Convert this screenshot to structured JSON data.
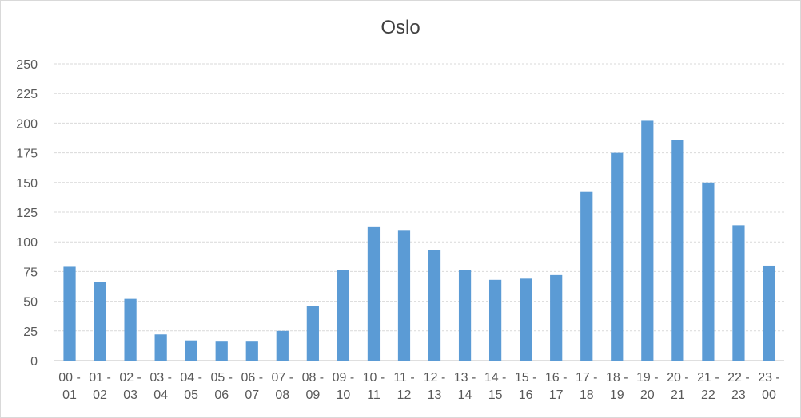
{
  "chart_data": {
    "type": "bar",
    "title": "Oslo",
    "xlabel": "",
    "ylabel": "",
    "ylim": [
      0,
      250
    ],
    "yticks": [
      "0",
      "25",
      "50",
      "75",
      "100",
      "125",
      "150",
      "175",
      "200",
      "225",
      "250"
    ],
    "grid": true,
    "legend": "none",
    "bar_color": "#5b9bd5",
    "categories": [
      [
        "00 -",
        "01"
      ],
      [
        "01 -",
        "02"
      ],
      [
        "02 -",
        "03"
      ],
      [
        "03 -",
        "04"
      ],
      [
        "04 -",
        "05"
      ],
      [
        "05 -",
        "06"
      ],
      [
        "06 -",
        "07"
      ],
      [
        "07 -",
        "08"
      ],
      [
        "08 -",
        "09"
      ],
      [
        "09 -",
        "10"
      ],
      [
        "10 -",
        "11"
      ],
      [
        "11 -",
        "12"
      ],
      [
        "12 -",
        "13"
      ],
      [
        "13 -",
        "14"
      ],
      [
        "14 -",
        "15"
      ],
      [
        "15 -",
        "16"
      ],
      [
        "16 -",
        "17"
      ],
      [
        "17 -",
        "18"
      ],
      [
        "18 -",
        "19"
      ],
      [
        "19 -",
        "20"
      ],
      [
        "20 -",
        "21"
      ],
      [
        "21 -",
        "22"
      ],
      [
        "22 -",
        "23"
      ],
      [
        "23 -",
        "00"
      ]
    ],
    "values": [
      79,
      66,
      52,
      22,
      17,
      16,
      16,
      25,
      46,
      76,
      113,
      110,
      93,
      76,
      68,
      69,
      72,
      142,
      175,
      202,
      186,
      150,
      114,
      80
    ]
  }
}
